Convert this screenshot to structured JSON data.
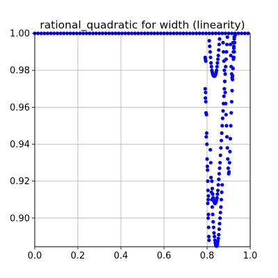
{
  "chart_data": {
    "type": "scatter",
    "title": "rational_quadratic for width (linearity)",
    "xlabel": "",
    "ylabel": "",
    "xlim": [
      0.0,
      1.0
    ],
    "ylim": [
      0.8845,
      1.0
    ],
    "grid": true,
    "x_ticks": [
      "0.0",
      "0.2",
      "0.4",
      "0.6",
      "0.8",
      "1.0"
    ],
    "y_ticks": [
      "0.90",
      "0.92",
      "0.94",
      "0.96",
      "0.98",
      "1.00"
    ],
    "x_tick_values": [
      0.0,
      0.2,
      0.4,
      0.6,
      0.8,
      1.0
    ],
    "y_tick_values": [
      0.9,
      0.92,
      0.94,
      0.96,
      0.98,
      1.0
    ],
    "marker_color": "#0000ff",
    "series": [
      {
        "plateau": {
          "y": 1.0,
          "x": [
            0.0,
            0.015,
            0.03,
            0.045,
            0.06,
            0.075,
            0.09,
            0.105,
            0.12,
            0.135,
            0.15,
            0.165,
            0.18,
            0.195,
            0.21,
            0.225,
            0.24,
            0.255,
            0.27,
            0.285,
            0.3,
            0.315,
            0.33,
            0.345,
            0.36,
            0.375,
            0.39,
            0.405,
            0.42,
            0.435,
            0.45,
            0.465,
            0.48,
            0.495,
            0.51,
            0.525,
            0.54,
            0.555,
            0.57,
            0.585,
            0.6,
            0.615,
            0.63,
            0.645,
            0.66,
            0.675,
            0.69,
            0.705,
            0.72,
            0.735,
            0.75,
            0.765,
            0.78,
            0.795,
            0.81,
            0.825,
            0.84,
            0.855,
            0.87,
            0.885,
            0.9,
            0.915,
            0.93,
            0.945,
            0.96,
            0.975,
            0.99
          ]
        },
        "points": [
          [
            0.791,
            0.987
          ],
          [
            0.792,
            0.986
          ],
          [
            0.794,
            0.985
          ],
          [
            0.791,
            0.97
          ],
          [
            0.793,
            0.968
          ],
          [
            0.792,
            0.965
          ],
          [
            0.794,
            0.963
          ],
          [
            0.795,
            0.957
          ],
          [
            0.797,
            0.956
          ],
          [
            0.796,
            0.944
          ],
          [
            0.798,
            0.946
          ],
          [
            0.799,
            0.94
          ],
          [
            0.8,
            0.932
          ],
          [
            0.801,
            0.928
          ],
          [
            0.802,
            0.926
          ],
          [
            0.803,
            0.92
          ],
          [
            0.804,
            0.915
          ],
          [
            0.806,
            0.912
          ],
          [
            0.803,
            0.908
          ],
          [
            0.805,
            0.9
          ],
          [
            0.807,
            0.895
          ],
          [
            0.808,
            0.89
          ],
          [
            0.809,
            0.888
          ],
          [
            0.806,
            0.902
          ],
          [
            0.805,
            0.91
          ],
          [
            0.815,
            0.937
          ],
          [
            0.817,
            0.93
          ],
          [
            0.818,
            0.922
          ],
          [
            0.82,
            0.914
          ],
          [
            0.822,
            0.91
          ],
          [
            0.824,
            0.906
          ],
          [
            0.826,
            0.902
          ],
          [
            0.828,
            0.898
          ],
          [
            0.83,
            0.895
          ],
          [
            0.832,
            0.892
          ],
          [
            0.834,
            0.89
          ],
          [
            0.836,
            0.888
          ],
          [
            0.838,
            0.8865
          ],
          [
            0.84,
            0.8855
          ],
          [
            0.842,
            0.885
          ],
          [
            0.844,
            0.8848
          ],
          [
            0.846,
            0.885
          ],
          [
            0.848,
            0.886
          ],
          [
            0.85,
            0.8875
          ],
          [
            0.852,
            0.889
          ],
          [
            0.854,
            0.891
          ],
          [
            0.856,
            0.894
          ],
          [
            0.858,
            0.897
          ],
          [
            0.86,
            0.9
          ],
          [
            0.862,
            0.903
          ],
          [
            0.864,
            0.906
          ],
          [
            0.866,
            0.91
          ],
          [
            0.868,
            0.914
          ],
          [
            0.87,
            0.918
          ],
          [
            0.822,
            0.92
          ],
          [
            0.824,
            0.916
          ],
          [
            0.826,
            0.913
          ],
          [
            0.828,
            0.911
          ],
          [
            0.83,
            0.91
          ],
          [
            0.832,
            0.909
          ],
          [
            0.834,
            0.9085
          ],
          [
            0.836,
            0.908
          ],
          [
            0.838,
            0.908
          ],
          [
            0.84,
            0.9085
          ],
          [
            0.842,
            0.909
          ],
          [
            0.844,
            0.91
          ],
          [
            0.846,
            0.911
          ],
          [
            0.848,
            0.913
          ],
          [
            0.85,
            0.915
          ],
          [
            0.852,
            0.918
          ],
          [
            0.854,
            0.921
          ],
          [
            0.856,
            0.924
          ],
          [
            0.858,
            0.927
          ],
          [
            0.86,
            0.93
          ],
          [
            0.862,
            0.934
          ],
          [
            0.864,
            0.938
          ],
          [
            0.866,
            0.942
          ],
          [
            0.868,
            0.946
          ],
          [
            0.87,
            0.95
          ],
          [
            0.872,
            0.954
          ],
          [
            0.874,
            0.958
          ],
          [
            0.876,
            0.962
          ],
          [
            0.878,
            0.966
          ],
          [
            0.88,
            0.97
          ],
          [
            0.882,
            0.974
          ],
          [
            0.884,
            0.978
          ],
          [
            0.886,
            0.982
          ],
          [
            0.888,
            0.986
          ],
          [
            0.89,
            0.99
          ],
          [
            0.892,
            0.994
          ],
          [
            0.894,
            0.998
          ],
          [
            0.81,
            0.996
          ],
          [
            0.812,
            0.993
          ],
          [
            0.814,
            0.99
          ],
          [
            0.816,
            0.987
          ],
          [
            0.818,
            0.984
          ],
          [
            0.82,
            0.982
          ],
          [
            0.822,
            0.98
          ],
          [
            0.824,
            0.979
          ],
          [
            0.826,
            0.978
          ],
          [
            0.828,
            0.9775
          ],
          [
            0.83,
            0.977
          ],
          [
            0.832,
            0.977
          ],
          [
            0.834,
            0.9768
          ],
          [
            0.836,
            0.977
          ],
          [
            0.838,
            0.9775
          ],
          [
            0.84,
            0.978
          ],
          [
            0.842,
            0.979
          ],
          [
            0.844,
            0.98
          ],
          [
            0.846,
            0.982
          ],
          [
            0.848,
            0.984
          ],
          [
            0.85,
            0.986
          ],
          [
            0.852,
            0.988
          ],
          [
            0.854,
            0.991
          ],
          [
            0.856,
            0.994
          ],
          [
            0.858,
            0.997
          ],
          [
            0.874,
            0.995
          ],
          [
            0.876,
            0.99
          ],
          [
            0.878,
            0.985
          ],
          [
            0.88,
            0.98
          ],
          [
            0.882,
            0.974
          ],
          [
            0.884,
            0.968
          ],
          [
            0.886,
            0.962
          ],
          [
            0.888,
            0.956
          ],
          [
            0.89,
            0.95
          ],
          [
            0.892,
            0.944
          ],
          [
            0.894,
            0.938
          ],
          [
            0.896,
            0.932
          ],
          [
            0.898,
            0.927
          ],
          [
            0.9,
            0.924
          ],
          [
            0.902,
            0.925
          ],
          [
            0.904,
            0.93
          ],
          [
            0.906,
            0.936
          ],
          [
            0.908,
            0.943
          ],
          [
            0.91,
            0.95
          ],
          [
            0.912,
            0.957
          ],
          [
            0.914,
            0.963
          ],
          [
            0.916,
            0.969
          ],
          [
            0.918,
            0.975
          ],
          [
            0.92,
            0.981
          ],
          [
            0.922,
            0.987
          ],
          [
            0.924,
            0.993
          ],
          [
            0.926,
            0.998
          ],
          [
            0.908,
            0.994
          ],
          [
            0.91,
            0.988
          ],
          [
            0.912,
            0.982
          ],
          [
            0.914,
            0.978
          ],
          [
            0.916,
            0.976
          ],
          [
            0.918,
            0.977
          ],
          [
            0.92,
            0.981
          ],
          [
            0.922,
            0.986
          ],
          [
            0.924,
            0.992
          ],
          [
            0.926,
            0.997
          ],
          [
            0.92,
            0.995
          ],
          [
            0.922,
            0.99
          ],
          [
            0.924,
            0.987
          ],
          [
            0.926,
            0.99
          ],
          [
            0.928,
            0.995
          ],
          [
            0.93,
            0.999
          ]
        ]
      }
    ]
  }
}
